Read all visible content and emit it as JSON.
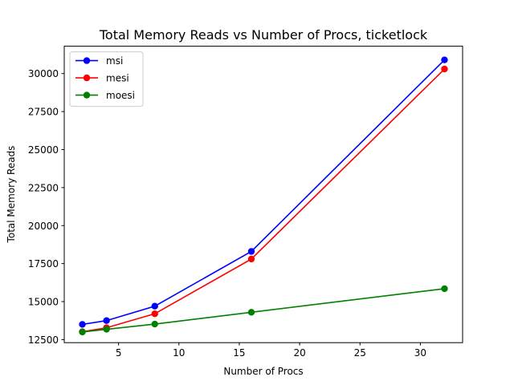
{
  "chart_data": {
    "type": "line",
    "title": "Total Memory Reads vs Number of Procs, ticketlock",
    "xlabel": "Number of Procs",
    "ylabel": "Total Memory Reads",
    "x": [
      2,
      4,
      8,
      16,
      32
    ],
    "xlim": [
      0.5,
      33.5
    ],
    "ylim": [
      12300,
      31800
    ],
    "xticks": [
      5,
      10,
      15,
      20,
      25,
      30
    ],
    "yticks": [
      12500,
      15000,
      17500,
      20000,
      22500,
      25000,
      27500,
      30000
    ],
    "grid": false,
    "legend_position": "top-left",
    "series": [
      {
        "name": "msi",
        "color": "#0000ff",
        "values": [
          13500,
          13750,
          14700,
          18300,
          30900
        ]
      },
      {
        "name": "mesi",
        "color": "#ff0000",
        "values": [
          13020,
          13280,
          14200,
          17800,
          30300
        ]
      },
      {
        "name": "moesi",
        "color": "#008000",
        "values": [
          13000,
          13180,
          13520,
          14300,
          15850
        ]
      }
    ]
  }
}
